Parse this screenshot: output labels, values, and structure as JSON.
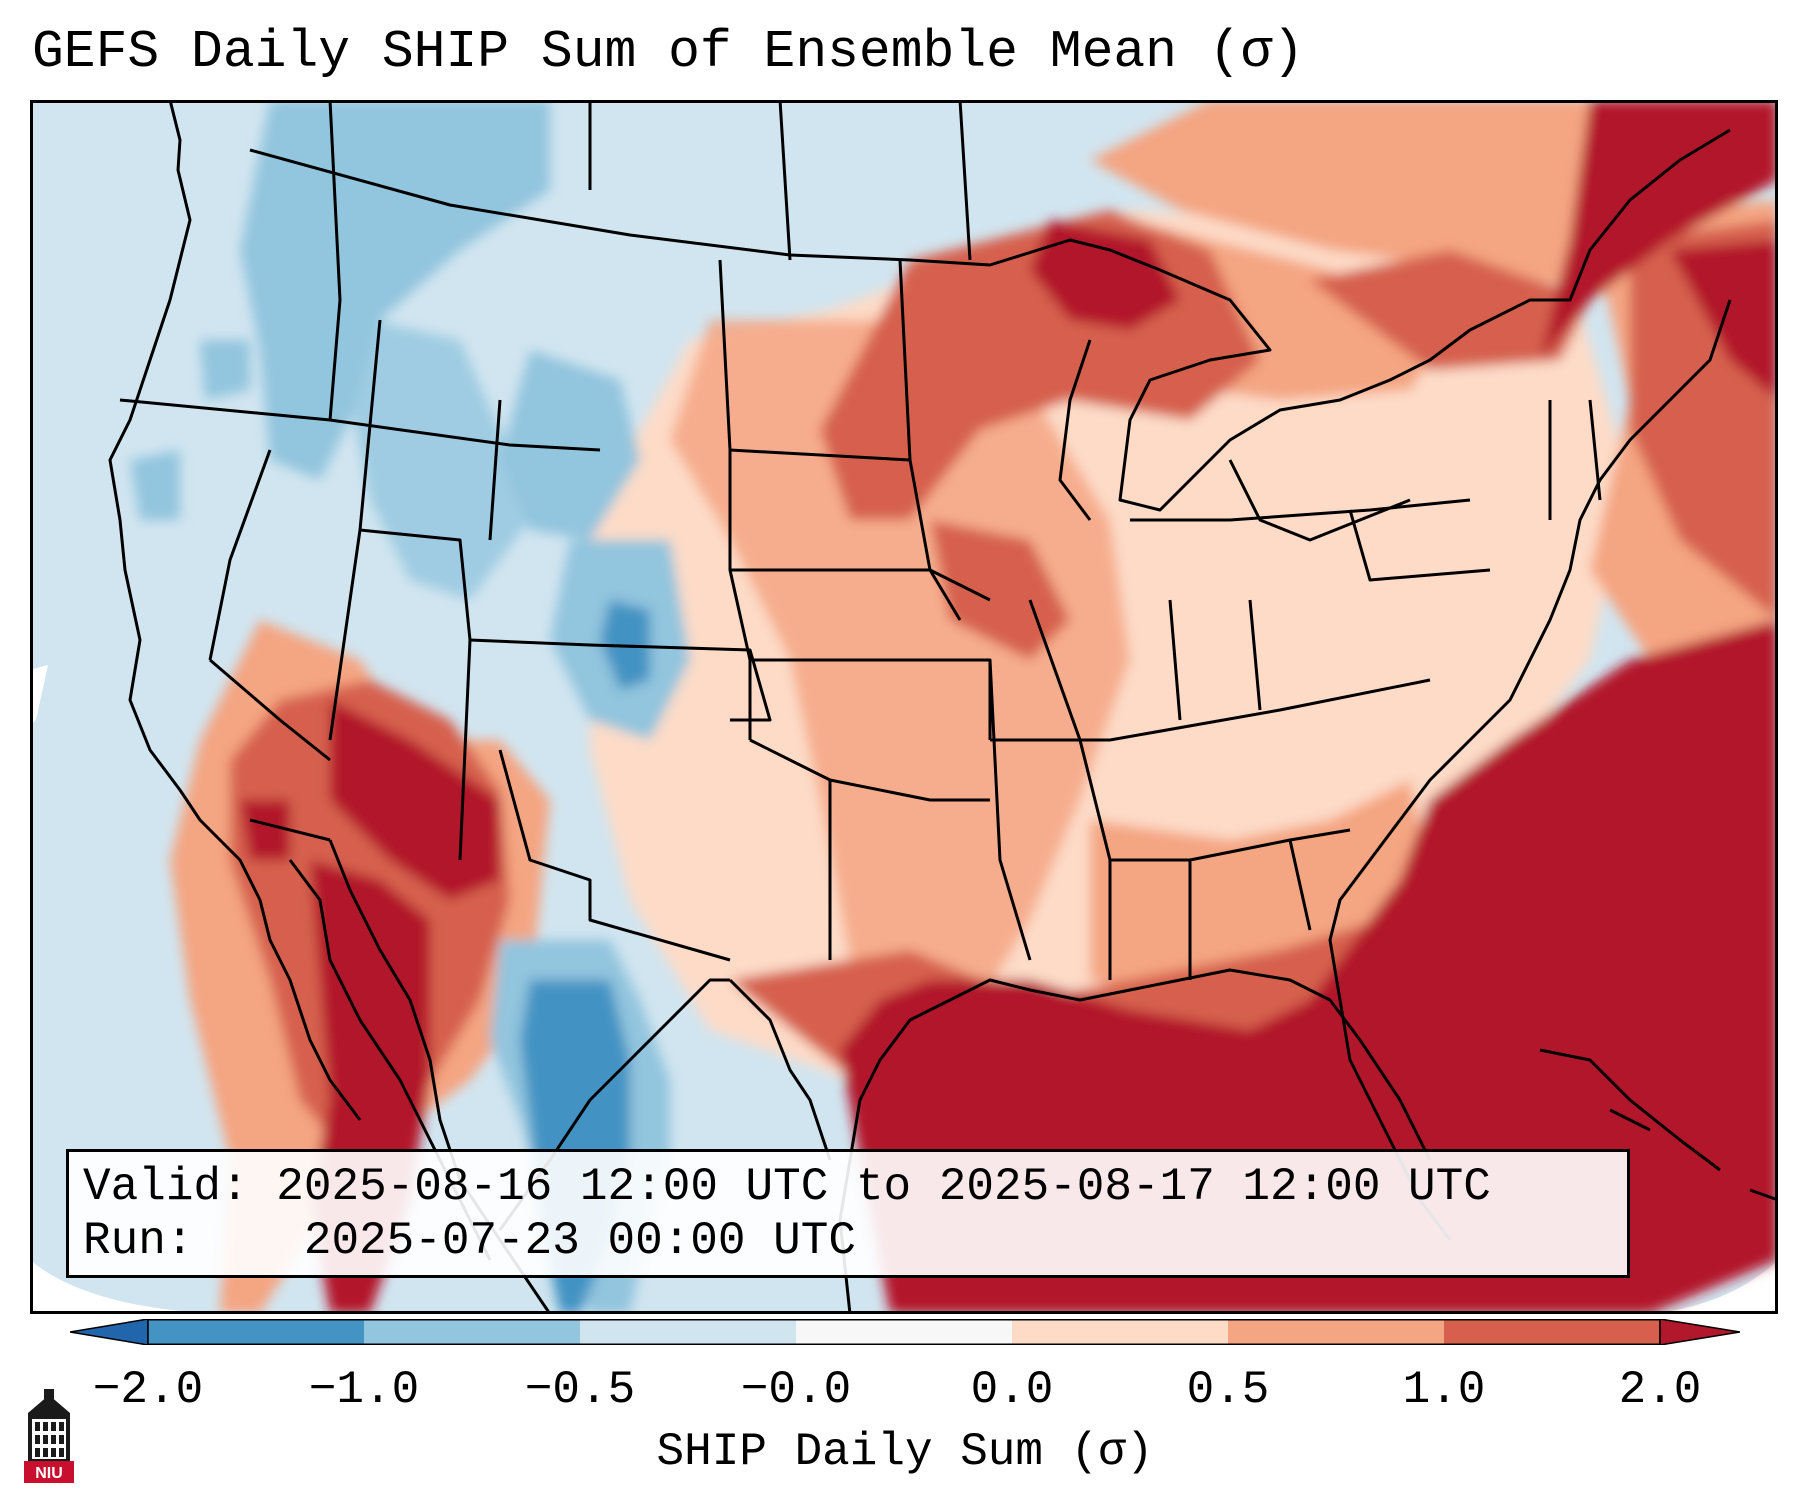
{
  "title": "GEFS Daily SHIP Sum of Ensemble Mean (σ)",
  "info": {
    "valid_label": "Valid:",
    "valid_value": "2025-08-16 12:00 UTC to 2025-08-17 12:00 UTC",
    "run_label": "Run:",
    "run_value": "2025-07-23 00:00 UTC"
  },
  "colorbar": {
    "label": "SHIP Daily Sum (σ)",
    "ticks": [
      "−2.0",
      "−1.0",
      "−0.5",
      "−0.0",
      "0.0",
      "0.5",
      "1.0",
      "2.0"
    ],
    "colors": [
      "#2166ac",
      "#4393c3",
      "#92c5de",
      "#d1e5f0",
      "#f7f7f7",
      "#fddbc7",
      "#f4a582",
      "#d6604d",
      "#b2182b"
    ],
    "extend": "both"
  },
  "legend_colors": {
    "under": "#2166ac",
    "bin_-2_-1": "#4393c3",
    "bin_-1_-0.5": "#92c5de",
    "bin_-0.5_0": "#d1e5f0",
    "bin_0_0": "#f7f7f7",
    "bin_0_0.5": "#fddbc7",
    "bin_0.5_1": "#f4a582",
    "bin_1_2": "#d6604d",
    "over": "#b2182b"
  },
  "logo": {
    "text": "NIU",
    "icon": "university-building-icon"
  }
}
